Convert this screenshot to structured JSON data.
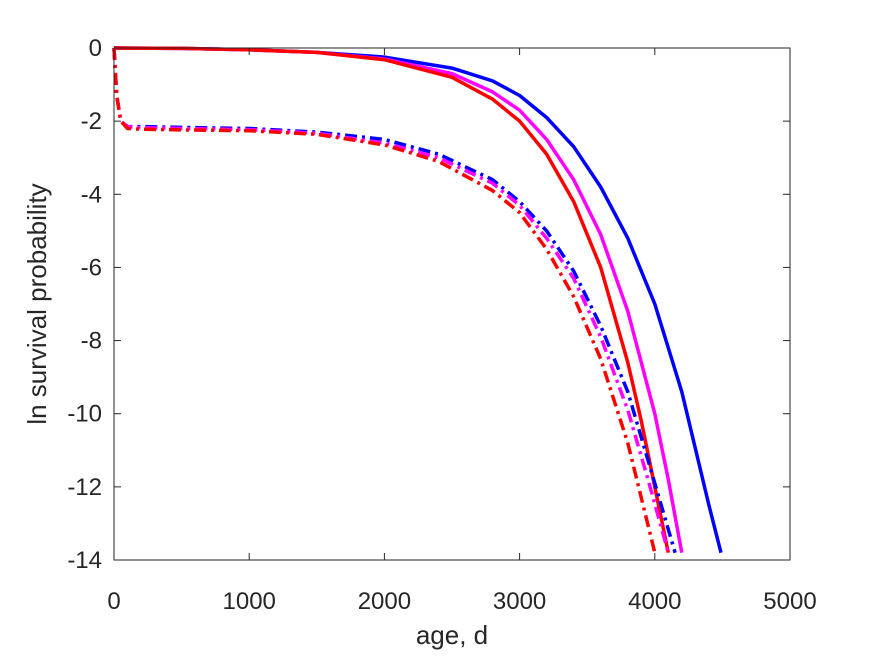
{
  "chart_data": {
    "type": "line",
    "title": "",
    "xlabel": "age, d",
    "ylabel": "ln survival probability",
    "xlim": [
      0,
      5000
    ],
    "ylim": [
      -14,
      0
    ],
    "xticks": [
      0,
      1000,
      2000,
      3000,
      4000,
      5000
    ],
    "yticks": [
      -14,
      -12,
      -10,
      -8,
      -6,
      -4,
      -2,
      0
    ],
    "grid": false,
    "legend": "none",
    "series": [
      {
        "color": "#0000ff",
        "style": "solid",
        "x": [
          0,
          500,
          1000,
          1500,
          2000,
          2500,
          2800,
          3000,
          3200,
          3400,
          3600,
          3800,
          4000,
          4200,
          4400,
          4490
        ],
        "y": [
          0,
          -0.01,
          -0.05,
          -0.12,
          -0.25,
          -0.55,
          -0.9,
          -1.3,
          -1.9,
          -2.7,
          -3.8,
          -5.2,
          -7.0,
          -9.4,
          -12.5,
          -13.8
        ]
      },
      {
        "color": "#ff00ff",
        "style": "solid",
        "x": [
          0,
          500,
          1000,
          1500,
          2000,
          2500,
          2800,
          3000,
          3200,
          3400,
          3600,
          3800,
          4000,
          4100,
          4200
        ],
        "y": [
          0,
          -0.01,
          -0.05,
          -0.12,
          -0.3,
          -0.7,
          -1.2,
          -1.7,
          -2.5,
          -3.6,
          -5.1,
          -7.2,
          -10.0,
          -11.8,
          -13.8
        ]
      },
      {
        "color": "#ff0000",
        "style": "solid",
        "x": [
          0,
          500,
          1000,
          1500,
          2000,
          2500,
          2800,
          3000,
          3200,
          3400,
          3600,
          3800,
          3900,
          4000,
          4100
        ],
        "y": [
          0,
          -0.01,
          -0.05,
          -0.12,
          -0.32,
          -0.8,
          -1.4,
          -2.0,
          -2.9,
          -4.2,
          -6.0,
          -8.6,
          -10.2,
          -12.0,
          -13.8
        ]
      },
      {
        "color": "#0000ff",
        "style": "dashdot",
        "x": [
          0,
          20,
          50,
          100,
          200,
          500,
          1000,
          1500,
          2000,
          2400,
          2800,
          3000,
          3200,
          3400,
          3600,
          3800,
          4000,
          4150
        ],
        "y": [
          0,
          -1.3,
          -2.0,
          -2.15,
          -2.15,
          -2.17,
          -2.2,
          -2.3,
          -2.5,
          -2.9,
          -3.6,
          -4.2,
          -5.0,
          -6.1,
          -7.6,
          -9.4,
          -11.9,
          -13.8
        ]
      },
      {
        "color": "#ff00ff",
        "style": "dashdot",
        "x": [
          0,
          20,
          50,
          100,
          200,
          500,
          1000,
          1500,
          2000,
          2400,
          2800,
          3000,
          3200,
          3400,
          3600,
          3800,
          3950,
          4100
        ],
        "y": [
          0,
          -1.3,
          -2.0,
          -2.15,
          -2.18,
          -2.2,
          -2.23,
          -2.33,
          -2.6,
          -3.0,
          -3.7,
          -4.3,
          -5.2,
          -6.3,
          -7.9,
          -9.9,
          -11.8,
          -13.8
        ]
      },
      {
        "color": "#ff0000",
        "style": "dashdot",
        "x": [
          0,
          20,
          50,
          100,
          200,
          500,
          1000,
          1500,
          2000,
          2400,
          2800,
          3000,
          3200,
          3400,
          3600,
          3800,
          3900,
          4000
        ],
        "y": [
          0,
          -1.3,
          -2.0,
          -2.2,
          -2.22,
          -2.24,
          -2.26,
          -2.36,
          -2.65,
          -3.1,
          -3.9,
          -4.5,
          -5.5,
          -6.8,
          -8.5,
          -10.8,
          -12.3,
          -13.8
        ]
      }
    ]
  }
}
